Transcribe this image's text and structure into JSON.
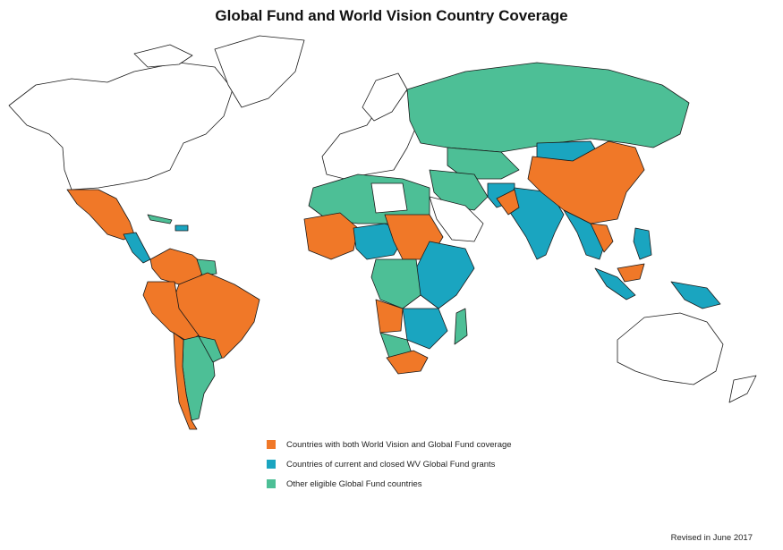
{
  "title": "Global Fund and World Vision Country Coverage",
  "colors": {
    "both": "#f07828",
    "grants": "#1aa5c0",
    "eligible": "#4dbf96",
    "none": "#ffffff"
  },
  "legend": [
    {
      "key": "both",
      "label": "Countries with both World Vision and Global Fund coverage"
    },
    {
      "key": "grants",
      "label": "Countries of current and closed WV Global Fund grants"
    },
    {
      "key": "eligible",
      "label": "Other eligible Global Fund countries"
    }
  ],
  "footnote": "Revised in June 2017"
}
